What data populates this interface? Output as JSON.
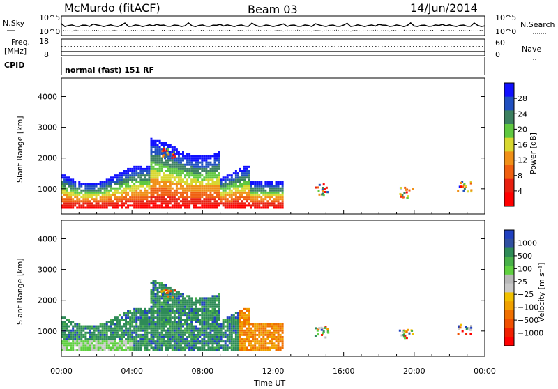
{
  "header": {
    "station": "McMurdo (fitACF)",
    "beam": "Beam 03",
    "date": "14/Jun/2014"
  },
  "top_panels": {
    "nsky_label": "N.Sky",
    "nsearch_label": "N.Search",
    "noise_ticks": [
      "10^5",
      "10^0"
    ],
    "freq_label": "Freq.",
    "freq_unit": "[MHz]",
    "freq_ticks": [
      "18",
      "8"
    ],
    "nave_label": "Nave",
    "nave_ticks": [
      "60",
      "0"
    ],
    "cpid_label": "CPID",
    "cpid_text": "normal (fast) 151 RF"
  },
  "chart_data": [
    {
      "type": "heatmap",
      "name": "power",
      "ylabel": "Slant Range [km]",
      "yticks": [
        1000,
        2000,
        3000,
        4000
      ],
      "ylim": [
        180,
        4600
      ],
      "xlim": [
        0,
        24
      ],
      "xticks": [
        "00:00",
        "04:00",
        "08:00",
        "12:00",
        "16:00",
        "20:00",
        "00:00"
      ],
      "colorbar": {
        "label": "Power [dB]",
        "ticks": [
          "4",
          "8",
          "12",
          "16",
          "20",
          "24",
          "28"
        ],
        "colors": [
          "#1010ff",
          "#2050c0",
          "#3c8060",
          "#60c840",
          "#d8d830",
          "#f09018",
          "#f06010",
          "#e82010",
          "#ff0000"
        ]
      }
    },
    {
      "type": "heatmap",
      "name": "velocity",
      "ylabel": "Slant Range [km]",
      "yticks": [
        1000,
        2000,
        3000,
        4000
      ],
      "ylim": [
        180,
        4600
      ],
      "xlim": [
        0,
        24
      ],
      "xticks": [
        "00:00",
        "04:00",
        "08:00",
        "12:00",
        "16:00",
        "20:00",
        "00:00"
      ],
      "xlabel": "Time UT",
      "colorbar": {
        "label": "Velocity [m s⁻¹]",
        "ticks": [
          "1000",
          "500",
          "100",
          "25",
          "−25",
          "−100",
          "−500",
          "−1000"
        ],
        "colors": [
          "#2040c0",
          "#3050a0",
          "#2e8b57",
          "#48b048",
          "#60d040",
          "#b8b8b8",
          "#c8c8c8",
          "#f0c000",
          "#f0a000",
          "#f07000",
          "#f05000",
          "#f02000",
          "#ff0000"
        ]
      }
    }
  ]
}
